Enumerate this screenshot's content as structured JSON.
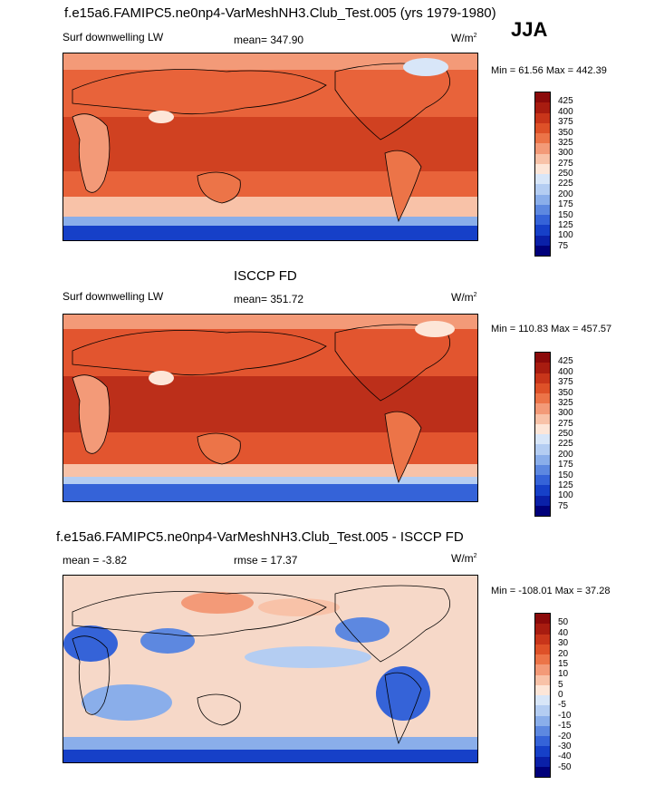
{
  "season": "JJA",
  "panels": [
    {
      "title": "f.e15a6.FAMIPC5.ne0np4-VarMeshNH3.Club_Test.005 (yrs 1979-1980)",
      "left_label": "Surf downwelling LW",
      "center_label": "mean= 347.90",
      "units_base": "W/m",
      "units_exp": "2",
      "minmax": "Min =  61.56 Max = 442.39",
      "map_fill": "#e8633a",
      "colorbar": {
        "labels": [
          "425",
          "400",
          "375",
          "350",
          "325",
          "300",
          "275",
          "250",
          "225",
          "200",
          "175",
          "150",
          "125",
          "100",
          "75"
        ],
        "colors": [
          "#8b0a0a",
          "#a81c10",
          "#c8351a",
          "#de5128",
          "#ec7448",
          "#f39a78",
          "#f8c2a8",
          "#fde6d8",
          "#d8e6f8",
          "#b4cdf2",
          "#8aaeea",
          "#5d88e0",
          "#3563d8",
          "#1640c8",
          "#0a20a8",
          "#00007a"
        ]
      }
    },
    {
      "title": "ISCCP FD",
      "left_label": "Surf downwelling LW",
      "center_label": "mean= 351.72",
      "units_base": "W/m",
      "units_exp": "2",
      "minmax": "Min = 110.83 Max = 457.57",
      "map_fill": "#e2552f",
      "colorbar": {
        "labels": [
          "425",
          "400",
          "375",
          "350",
          "325",
          "300",
          "275",
          "250",
          "225",
          "200",
          "175",
          "150",
          "125",
          "100",
          "75"
        ],
        "colors": [
          "#8b0a0a",
          "#a81c10",
          "#c8351a",
          "#de5128",
          "#ec7448",
          "#f39a78",
          "#f8c2a8",
          "#fde6d8",
          "#d8e6f8",
          "#b4cdf2",
          "#8aaeea",
          "#5d88e0",
          "#3563d8",
          "#1640c8",
          "#0a20a8",
          "#00007a"
        ]
      }
    },
    {
      "title": "f.e15a6.FAMIPC5.ne0np4-VarMeshNH3.Club_Test.005 - ISCCP FD",
      "left_label": "mean =  -3.82",
      "center_label": "rmse =  17.37",
      "units_base": "W/m",
      "units_exp": "2",
      "minmax": "Min = -108.01 Max =  37.28",
      "map_fill": "#f6d8c8",
      "colorbar": {
        "labels": [
          "50",
          "40",
          "30",
          "20",
          "15",
          "10",
          "5",
          "0",
          "-5",
          "-10",
          "-15",
          "-20",
          "-30",
          "-40",
          "-50"
        ],
        "colors": [
          "#8b0a0a",
          "#a81c10",
          "#c8351a",
          "#de5128",
          "#ec7448",
          "#f39a78",
          "#f8c2a8",
          "#fde6d8",
          "#d8e6f8",
          "#b4cdf2",
          "#8aaeea",
          "#5d88e0",
          "#3563d8",
          "#1640c8",
          "#0a20a8",
          "#00007a"
        ]
      }
    }
  ]
}
